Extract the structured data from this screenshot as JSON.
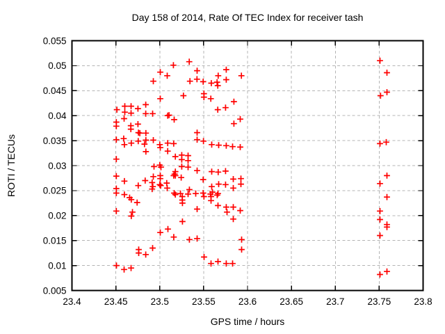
{
  "chart_data": {
    "type": "scatter",
    "title": "Day 158 of 2014, Rate Of TEC Index for receiver tash",
    "xlabel": "GPS time / hours",
    "ylabel": "ROTI / TECUs",
    "xlim": [
      23.4,
      23.8
    ],
    "ylim": [
      0.005,
      0.055
    ],
    "xticks": [
      {
        "label": "23.4",
        "value": 23.4
      },
      {
        "label": "23.45",
        "value": 23.45
      },
      {
        "label": "23.5",
        "value": 23.5
      },
      {
        "label": "23.55",
        "value": 23.55
      },
      {
        "label": "23.6",
        "value": 23.6
      },
      {
        "label": "23.65",
        "value": 23.65
      },
      {
        "label": "23.7",
        "value": 23.7
      },
      {
        "label": "23.75",
        "value": 23.75
      },
      {
        "label": "23.8",
        "value": 23.8
      }
    ],
    "yticks": [
      {
        "label": "0.005",
        "value": 0.005
      },
      {
        "label": "0.01",
        "value": 0.01
      },
      {
        "label": "0.015",
        "value": 0.015
      },
      {
        "label": "0.02",
        "value": 0.02
      },
      {
        "label": "0.025",
        "value": 0.025
      },
      {
        "label": "0.03",
        "value": 0.03
      },
      {
        "label": "0.035",
        "value": 0.035
      },
      {
        "label": "0.04",
        "value": 0.04
      },
      {
        "label": "0.045",
        "value": 0.045
      },
      {
        "label": "0.05",
        "value": 0.05
      },
      {
        "label": "0.055",
        "value": 0.055
      }
    ],
    "grid": true,
    "legend": null,
    "marker": "plus",
    "marker_color": "#ff0000",
    "grid_color": "#b4b4b4",
    "border_color": "#000000",
    "series": [
      {
        "name": "ROTI",
        "points": [
          [
            23.5006,
            0.0487
          ],
          [
            23.4927,
            0.0469
          ],
          [
            23.5085,
            0.048
          ],
          [
            23.5156,
            0.0501
          ],
          [
            23.5336,
            0.0508
          ],
          [
            23.5426,
            0.049
          ],
          [
            23.5424,
            0.0473
          ],
          [
            23.5344,
            0.0469
          ],
          [
            23.5495,
            0.0468
          ],
          [
            23.5587,
            0.0465
          ],
          [
            23.5653,
            0.0467
          ],
          [
            23.5666,
            0.048
          ],
          [
            23.5661,
            0.046
          ],
          [
            23.5758,
            0.0492
          ],
          [
            23.5758,
            0.0472
          ],
          [
            23.593,
            0.048
          ],
          [
            23.527,
            0.044
          ],
          [
            23.5503,
            0.0444
          ],
          [
            23.5503,
            0.0437
          ],
          [
            23.5582,
            0.0434
          ],
          [
            23.5845,
            0.0428
          ],
          [
            23.5006,
            0.0434
          ],
          [
            23.575,
            0.0416
          ],
          [
            23.5661,
            0.0412
          ],
          [
            23.5917,
            0.0393
          ],
          [
            23.5845,
            0.0384
          ],
          [
            23.4512,
            0.0412
          ],
          [
            23.4602,
            0.0419
          ],
          [
            23.4602,
            0.0407
          ],
          [
            23.4673,
            0.0419
          ],
          [
            23.4673,
            0.0405
          ],
          [
            23.4752,
            0.0414
          ],
          [
            23.484,
            0.0422
          ],
          [
            23.484,
            0.0404
          ],
          [
            23.4919,
            0.0404
          ],
          [
            23.5091,
            0.04
          ],
          [
            23.5106,
            0.0401
          ],
          [
            23.5164,
            0.0392
          ],
          [
            23.4505,
            0.0387
          ],
          [
            23.4505,
            0.0379
          ],
          [
            23.4594,
            0.0394
          ],
          [
            23.4671,
            0.038
          ],
          [
            23.4671,
            0.0373
          ],
          [
            23.4752,
            0.0383
          ],
          [
            23.4757,
            0.0366
          ],
          [
            23.4773,
            0.0365
          ],
          [
            23.4842,
            0.0365
          ],
          [
            23.5426,
            0.0366
          ],
          [
            23.5426,
            0.0352
          ],
          [
            23.5498,
            0.0349
          ],
          [
            23.4842,
            0.0351
          ],
          [
            23.4505,
            0.0352
          ],
          [
            23.4589,
            0.0354
          ],
          [
            23.4597,
            0.0342
          ],
          [
            23.4676,
            0.0345
          ],
          [
            23.4755,
            0.0349
          ],
          [
            23.4826,
            0.0343
          ],
          [
            23.4842,
            0.0328
          ],
          [
            23.4927,
            0.0351
          ],
          [
            23.5,
            0.0342
          ],
          [
            23.5006,
            0.0336
          ],
          [
            23.5091,
            0.0345
          ],
          [
            23.5159,
            0.0344
          ],
          [
            23.5091,
            0.0329
          ],
          [
            23.5178,
            0.0318
          ],
          [
            23.5592,
            0.0342
          ],
          [
            23.5671,
            0.0341
          ],
          [
            23.5758,
            0.034
          ],
          [
            23.583,
            0.0338
          ],
          [
            23.5917,
            0.0337
          ],
          [
            23.5251,
            0.0321
          ],
          [
            23.5251,
            0.0312
          ],
          [
            23.5323,
            0.032
          ],
          [
            23.5323,
            0.031
          ],
          [
            23.4505,
            0.0313
          ],
          [
            23.4935,
            0.0298
          ],
          [
            23.5,
            0.0301
          ],
          [
            23.5014,
            0.0297
          ],
          [
            23.5251,
            0.0298
          ],
          [
            23.5323,
            0.0297
          ],
          [
            23.5426,
            0.029
          ],
          [
            23.5592,
            0.0288
          ],
          [
            23.5666,
            0.0287
          ],
          [
            23.575,
            0.0289
          ],
          [
            23.5178,
            0.0288
          ],
          [
            23.5178,
            0.028
          ],
          [
            23.5838,
            0.0273
          ],
          [
            23.5925,
            0.0274
          ],
          [
            23.5495,
            0.0272
          ],
          [
            23.4505,
            0.0279
          ],
          [
            23.4597,
            0.0269
          ],
          [
            23.4505,
            0.0254
          ],
          [
            23.4505,
            0.0245
          ],
          [
            23.4597,
            0.0242
          ],
          [
            23.4657,
            0.0236
          ],
          [
            23.4676,
            0.0232
          ],
          [
            23.4742,
            0.0226
          ],
          [
            23.4755,
            0.026
          ],
          [
            23.4834,
            0.027
          ],
          [
            23.4927,
            0.0278
          ],
          [
            23.4913,
            0.0266
          ],
          [
            23.4921,
            0.0258
          ],
          [
            23.4913,
            0.0253
          ],
          [
            23.5006,
            0.028
          ],
          [
            23.5006,
            0.0274
          ],
          [
            23.5,
            0.0262
          ],
          [
            23.5011,
            0.026
          ],
          [
            23.508,
            0.0265
          ],
          [
            23.5085,
            0.0255
          ],
          [
            23.5159,
            0.028
          ],
          [
            23.517,
            0.0283
          ],
          [
            23.5244,
            0.0276
          ],
          [
            23.5178,
            0.0242
          ],
          [
            23.5257,
            0.0238
          ],
          [
            23.5257,
            0.0231
          ],
          [
            23.5925,
            0.0263
          ],
          [
            23.5838,
            0.0255
          ],
          [
            23.575,
            0.0262
          ],
          [
            23.5671,
            0.0263
          ],
          [
            23.5592,
            0.0258
          ],
          [
            23.5338,
            0.0252
          ],
          [
            23.5164,
            0.0245
          ],
          [
            23.5236,
            0.0244
          ],
          [
            23.5323,
            0.0243
          ],
          [
            23.541,
            0.0244
          ],
          [
            23.5495,
            0.0245
          ],
          [
            23.5578,
            0.0243
          ],
          [
            23.56,
            0.0247
          ],
          [
            23.5663,
            0.0244
          ],
          [
            23.5503,
            0.0238
          ],
          [
            23.5584,
            0.0238
          ],
          [
            23.5584,
            0.023
          ],
          [
            23.5655,
            0.0241
          ],
          [
            23.4505,
            0.0209
          ],
          [
            23.4676,
            0.0199
          ],
          [
            23.4689,
            0.0207
          ],
          [
            23.5663,
            0.022
          ],
          [
            23.5758,
            0.0217
          ],
          [
            23.5766,
            0.0207
          ],
          [
            23.5838,
            0.0217
          ],
          [
            23.5917,
            0.021
          ],
          [
            23.5426,
            0.0213
          ],
          [
            23.5259,
            0.0225
          ],
          [
            23.5259,
            0.0188
          ],
          [
            23.5838,
            0.0193
          ],
          [
            23.5006,
            0.0166
          ],
          [
            23.5093,
            0.0173
          ],
          [
            23.516,
            0.0157
          ],
          [
            23.5338,
            0.0152
          ],
          [
            23.5426,
            0.0154
          ],
          [
            23.5933,
            0.0152
          ],
          [
            23.5933,
            0.0132
          ],
          [
            23.476,
            0.0132
          ],
          [
            23.476,
            0.0125
          ],
          [
            23.484,
            0.0122
          ],
          [
            23.4919,
            0.0135
          ],
          [
            23.4507,
            0.01
          ],
          [
            23.4594,
            0.0092
          ],
          [
            23.4673,
            0.0095
          ],
          [
            23.5505,
            0.0117
          ],
          [
            23.5584,
            0.0104
          ],
          [
            23.5663,
            0.0108
          ],
          [
            23.5758,
            0.0104
          ],
          [
            23.583,
            0.0104
          ],
          [
            23.7509,
            0.051
          ],
          [
            23.7588,
            0.0486
          ],
          [
            23.7515,
            0.044
          ],
          [
            23.7588,
            0.0447
          ],
          [
            23.7509,
            0.0344
          ],
          [
            23.758,
            0.0347
          ],
          [
            23.7588,
            0.028
          ],
          [
            23.7509,
            0.0264
          ],
          [
            23.7588,
            0.0237
          ],
          [
            23.7509,
            0.0209
          ],
          [
            23.7509,
            0.0192
          ],
          [
            23.7588,
            0.0182
          ],
          [
            23.7588,
            0.0177
          ],
          [
            23.7509,
            0.016
          ],
          [
            23.7588,
            0.0088
          ],
          [
            23.7509,
            0.0082
          ]
        ]
      }
    ]
  }
}
